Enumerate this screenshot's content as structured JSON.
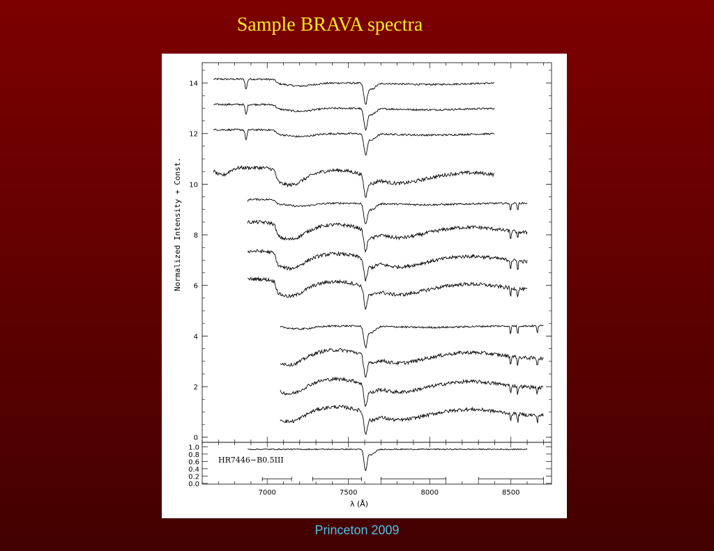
{
  "slide": {
    "title": "Sample BRAVA spectra",
    "footer": "Princeton 2009"
  },
  "colors": {
    "background_top": "#7c0000",
    "background_bottom": "#420000",
    "title": "#f5e92a",
    "footer": "#4ec3e8",
    "line": "#000000"
  },
  "chart_data": [
    {
      "type": "line",
      "title": "",
      "xlabel": "",
      "ylabel": "Normalized Intensity + Const.",
      "xlim": [
        6600,
        8750
      ],
      "ylim": [
        -0.2,
        14.8
      ],
      "x_ticks": [
        7000,
        7500,
        8000,
        8500
      ],
      "y_ticks": [
        0,
        2,
        4,
        6,
        8,
        10,
        12,
        14
      ],
      "y_tick_labels": [
        "0",
        "2",
        "4",
        "6",
        "8",
        "10",
        "12",
        "14"
      ],
      "grid": false,
      "legend": "none",
      "series_shape": {
        "smooth": "nearly flat continuum with an absorption near 6870 and a band head near 7050",
        "broad": "strong band heads near 7050 and 7600 with a broad hump between 7200 and 7600"
      },
      "feature": {
        "telluric_A_band_center": 7605,
        "telluric_A_band_depth": 0.75
      },
      "series": [
        {
          "offset": 14,
          "x_range": [
            6670,
            8400
          ],
          "shape": "smooth"
        },
        {
          "offset": 13,
          "x_range": [
            6670,
            8400
          ],
          "shape": "smooth"
        },
        {
          "offset": 12,
          "x_range": [
            6670,
            8400
          ],
          "shape": "smooth"
        },
        {
          "offset": 10.2,
          "x_range": [
            6670,
            8400
          ],
          "shape": "broad"
        },
        {
          "offset": 9.25,
          "x_range": [
            6880,
            8600
          ],
          "shape": "smooth"
        },
        {
          "offset": 8.05,
          "x_range": [
            6880,
            8600
          ],
          "shape": "broad"
        },
        {
          "offset": 6.9,
          "x_range": [
            6880,
            8600
          ],
          "shape": "broad"
        },
        {
          "offset": 5.8,
          "x_range": [
            6880,
            8600
          ],
          "shape": "broad"
        },
        {
          "offset": 4.4,
          "x_range": [
            7080,
            8700
          ],
          "shape": "smooth"
        },
        {
          "offset": 3.1,
          "x_range": [
            7080,
            8700
          ],
          "shape": "broad"
        },
        {
          "offset": 1.95,
          "x_range": [
            7080,
            8700
          ],
          "shape": "broad"
        },
        {
          "offset": 0.85,
          "x_range": [
            7080,
            8700
          ],
          "shape": "broad"
        }
      ]
    },
    {
      "type": "line",
      "title": "",
      "xlabel": "λ (Å)",
      "ylabel": "",
      "annotation": "HR7446−B0.5III",
      "xlim": [
        6600,
        8750
      ],
      "ylim": [
        -0.02,
        1.12
      ],
      "x_ticks": [
        7000,
        7500,
        8000,
        8500
      ],
      "x_tick_labels": [
        "7000",
        "7500",
        "8000",
        "8500"
      ],
      "y_ticks": [
        0.0,
        0.2,
        0.4,
        0.6,
        0.8,
        1.0
      ],
      "y_tick_labels": [
        "0.0",
        "0.2",
        "0.4",
        "0.6",
        "0.8",
        "1.0"
      ],
      "grid": false,
      "legend": "none",
      "series": [
        {
          "x_range": [
            6880,
            8600
          ],
          "level": 0.93,
          "absorption_center": 7605,
          "absorption_depth": 0.55
        }
      ],
      "wavelength_windows": [
        [
          6970,
          7150
        ],
        [
          7280,
          7580
        ],
        [
          7700,
          8100
        ],
        [
          8300,
          8700
        ]
      ],
      "window_level": 0.12
    }
  ]
}
